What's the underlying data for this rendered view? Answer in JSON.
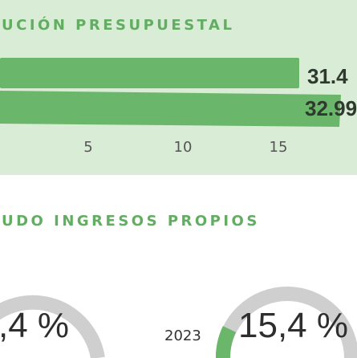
{
  "section_1": {
    "title": "UCIÓN PRESUPUESTAL",
    "bar_labels": [
      "31.4",
      "32.99"
    ],
    "axis_ticks": [
      "5",
      "10",
      "15"
    ]
  },
  "section_2": {
    "title": "UDO INGRESOS PROPIOS",
    "gauge_left": {
      "label": ",4 %"
    },
    "gauge_right": {
      "year": "2023",
      "label": "15,4 %"
    }
  }
}
